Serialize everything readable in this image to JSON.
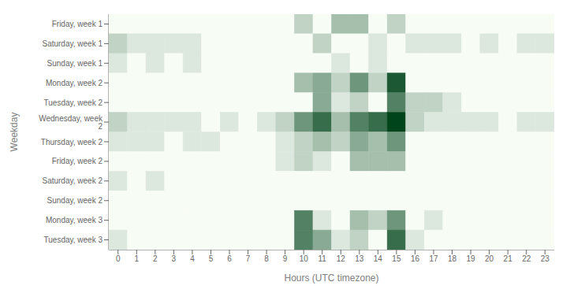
{
  "chart_data": {
    "type": "heatmap",
    "xlabel": "Hours (UTC timezone)",
    "ylabel": "Weekday",
    "categories": [
      "0",
      "1",
      "2",
      "3",
      "4",
      "5",
      "6",
      "7",
      "8",
      "9",
      "10",
      "11",
      "12",
      "13",
      "14",
      "15",
      "16",
      "17",
      "18",
      "19",
      "20",
      "21",
      "22",
      "23"
    ],
    "rows": [
      "Friday, week 1",
      "Saturday, week 1",
      "Sunday, week 1",
      "Monday, week 2",
      "Tuesday, week 2",
      "Wednesday, week 2",
      "Thursday, week 2",
      "Friday, week 2",
      "Saturday, week 2",
      "Sunday, week 2",
      "Monday, week 3",
      "Tuesday, week 3"
    ],
    "values": [
      [
        0,
        0,
        0,
        0,
        0,
        0,
        0,
        0,
        0,
        0,
        2,
        0,
        3,
        3,
        0,
        2,
        0,
        0,
        0,
        0,
        0,
        0,
        0,
        0
      ],
      [
        2,
        1,
        1,
        1,
        1,
        0,
        0,
        0,
        0,
        0,
        0,
        2,
        0,
        0,
        1,
        0,
        1,
        1,
        1,
        0,
        1,
        0,
        1,
        1
      ],
      [
        1,
        0,
        1,
        0,
        1,
        0,
        0,
        0,
        0,
        0,
        0,
        0,
        1,
        0,
        1,
        0,
        0,
        0,
        0,
        0,
        0,
        0,
        0,
        0
      ],
      [
        0,
        0,
        0,
        0,
        0,
        0,
        0,
        0,
        0,
        0,
        3,
        4,
        2,
        5,
        2,
        8,
        0,
        0,
        0,
        0,
        0,
        0,
        0,
        0
      ],
      [
        0,
        0,
        0,
        0,
        0,
        0,
        0,
        0,
        0,
        0,
        0,
        4,
        1,
        2,
        0,
        6,
        2,
        2,
        1,
        0,
        0,
        0,
        0,
        0
      ],
      [
        2,
        1,
        1,
        1,
        1,
        0,
        1,
        0,
        1,
        2,
        5,
        7,
        3,
        6,
        7,
        9,
        2,
        1,
        1,
        1,
        1,
        0,
        1,
        1
      ],
      [
        1,
        1,
        1,
        0,
        1,
        1,
        0,
        0,
        0,
        1,
        2,
        3,
        2,
        4,
        3,
        5,
        0,
        0,
        0,
        0,
        0,
        0,
        0,
        0
      ],
      [
        0,
        0,
        0,
        0,
        0,
        0,
        0,
        0,
        0,
        1,
        2,
        1,
        0,
        3,
        3,
        3,
        0,
        0,
        0,
        0,
        0,
        0,
        0,
        0
      ],
      [
        1,
        0,
        1,
        0,
        0,
        0,
        0,
        0,
        0,
        0,
        0,
        0,
        0,
        0,
        0,
        0,
        0,
        0,
        0,
        0,
        0,
        0,
        0,
        0
      ],
      [
        0,
        0,
        0,
        0,
        0,
        0,
        0,
        0,
        0,
        0,
        0,
        0,
        0,
        0,
        0,
        0,
        0,
        0,
        0,
        0,
        0,
        0,
        0,
        0
      ],
      [
        0,
        0,
        0,
        0,
        0,
        0,
        0,
        0,
        0,
        0,
        6,
        1,
        0,
        3,
        2,
        5,
        0,
        1,
        0,
        0,
        0,
        0,
        0,
        0
      ],
      [
        1,
        0,
        0,
        0,
        0,
        0,
        0,
        0,
        0,
        0,
        6,
        4,
        1,
        2,
        0,
        7,
        1,
        0,
        0,
        0,
        0,
        0,
        0,
        0
      ]
    ],
    "color_range": [
      0,
      9
    ],
    "color": "#00441b",
    "grid": false
  }
}
